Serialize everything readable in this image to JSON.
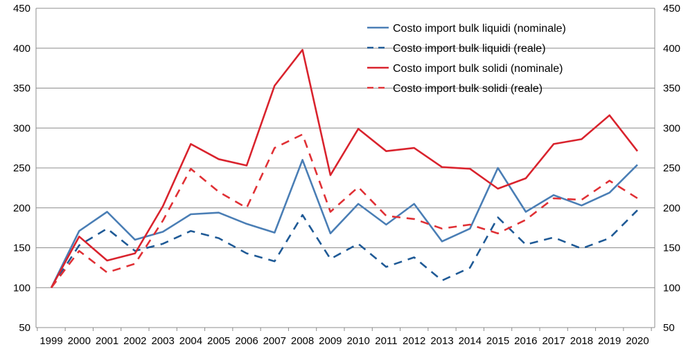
{
  "chart_data": {
    "type": "line",
    "title": "",
    "xlabel": "",
    "ylabel": "",
    "categories": [
      "1999",
      "2000",
      "2001",
      "2002",
      "2003",
      "2004",
      "2005",
      "2006",
      "2007",
      "2008",
      "2009",
      "2010",
      "2011",
      "2012",
      "2013",
      "2014",
      "2015",
      "2016",
      "2017",
      "2018",
      "2019",
      "2020"
    ],
    "ylim": [
      50,
      450
    ],
    "y_ticks": [
      "50",
      "100",
      "150",
      "200",
      "250",
      "300",
      "350",
      "400",
      "450"
    ],
    "grid": true,
    "legend_position": "top-right",
    "series": [
      {
        "name": "Costo import bulk liquidi (nominale)",
        "color": "#4a7eb5",
        "dash": "solid",
        "values": [
          100,
          171,
          195,
          160,
          170,
          192,
          194,
          180,
          169,
          260,
          168,
          205,
          179,
          205,
          158,
          174,
          250,
          195,
          216,
          203,
          219,
          254
        ]
      },
      {
        "name": "Costo import bulk liquidi (reale)",
        "color": "#1f5a96",
        "dash": "dashed",
        "values": [
          100,
          153,
          174,
          146,
          155,
          171,
          162,
          143,
          133,
          191,
          136,
          155,
          126,
          138,
          109,
          125,
          188,
          154,
          163,
          149,
          162,
          197
        ]
      },
      {
        "name": "Costo import bulk solidi (nominale)",
        "color": "#d9232d",
        "dash": "solid",
        "values": [
          100,
          164,
          134,
          143,
          202,
          280,
          261,
          253,
          353,
          398,
          241,
          299,
          271,
          275,
          251,
          249,
          224,
          237,
          280,
          286,
          316,
          271
        ]
      },
      {
        "name": "Costo import bulk solidi (reale)",
        "color": "#e03035",
        "dash": "dashed",
        "values": [
          100,
          146,
          119,
          130,
          184,
          249,
          220,
          200,
          275,
          292,
          195,
          226,
          190,
          186,
          174,
          179,
          168,
          185,
          212,
          210,
          234,
          212
        ]
      }
    ]
  }
}
